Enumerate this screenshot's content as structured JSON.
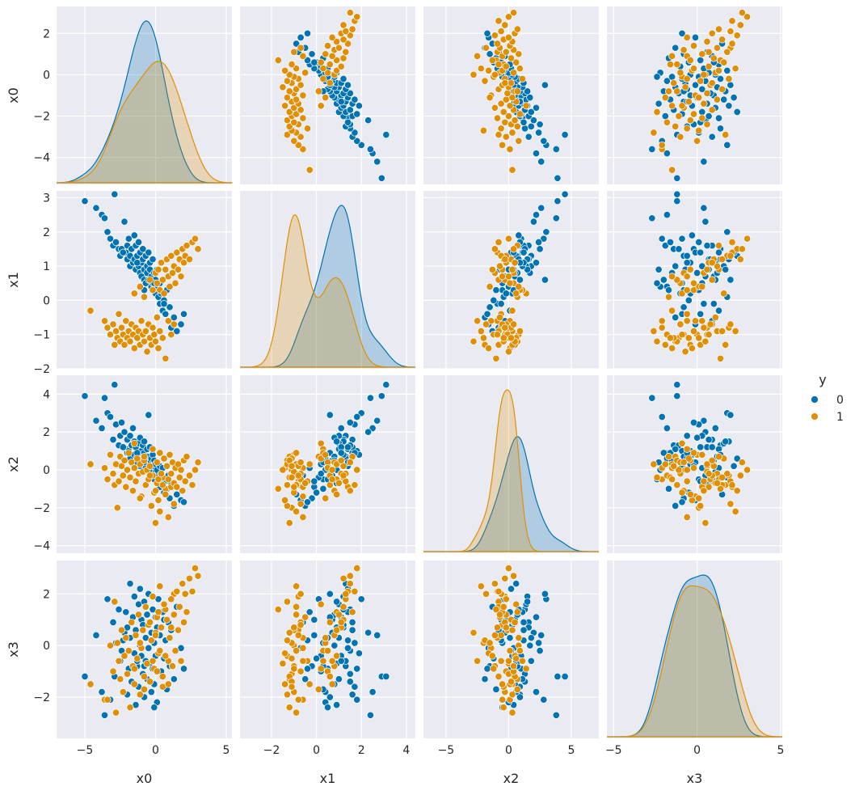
{
  "chart_data": {
    "type": "pairplot",
    "variables": [
      "x0",
      "x1",
      "x2",
      "x3"
    ],
    "hue": "y",
    "legend": {
      "title": "y",
      "placement": "right",
      "entries": [
        {
          "label": "0",
          "color": "#0173b2"
        },
        {
          "label": "1",
          "color": "#de8f05"
        }
      ]
    },
    "colors": {
      "panel_bg": "#eaeaf2",
      "grid": "#ffffff",
      "text": "#262626"
    },
    "grid": true,
    "axes": {
      "x0": {
        "range": [
          -7,
          5.4
        ],
        "ticks": [
          -5,
          0,
          5
        ]
      },
      "x1": {
        "range": [
          -3.4,
          4.4
        ],
        "ticks": [
          -2,
          0,
          2,
          4
        ]
      },
      "x2": {
        "range": [
          -6.8,
          7.2
        ],
        "ticks": [
          -5,
          0,
          5
        ]
      },
      "x3": {
        "range": [
          -5.4,
          5.1
        ],
        "ticks": [
          -5,
          0,
          5
        ]
      }
    },
    "y_ranges": {
      "x0": {
        "range": [
          -5.3,
          3.3
        ],
        "ticks": [
          -4,
          -2,
          0,
          2
        ]
      },
      "x1": {
        "range": [
          -2,
          3.2
        ],
        "ticks": [
          -2,
          -1,
          0,
          1,
          2,
          3
        ]
      },
      "x2": {
        "range": [
          -4.4,
          5.0
        ],
        "ticks": [
          -4,
          -2,
          0,
          2,
          4
        ]
      },
      "x3": {
        "range": [
          -3.6,
          3.3
        ],
        "ticks": [
          -2,
          0,
          2
        ]
      }
    },
    "series": [
      {
        "name": "0",
        "color": "#0173b2",
        "points": [
          [
            -5.0,
            2.9,
            3.9,
            -1.2
          ],
          [
            -4.2,
            2.7,
            2.6,
            0.4
          ],
          [
            -3.8,
            2.5,
            2.2,
            -1.8
          ],
          [
            -3.6,
            2.4,
            3.8,
            -2.7
          ],
          [
            -3.4,
            2.0,
            3.0,
            1.8
          ],
          [
            -3.2,
            1.8,
            2.8,
            -2.1
          ],
          [
            -3.0,
            1.6,
            1.6,
            0.9
          ],
          [
            -2.9,
            3.1,
            4.5,
            -1.2
          ],
          [
            -2.8,
            1.7,
            2.4,
            0.1
          ],
          [
            -2.6,
            1.5,
            1.3,
            1.4
          ],
          [
            -2.5,
            1.3,
            1.8,
            -0.6
          ],
          [
            -2.4,
            1.5,
            2.5,
            -0.2
          ],
          [
            -2.2,
            2.3,
            2.0,
            0.5
          ],
          [
            -2.1,
            1.4,
            1.1,
            1.3
          ],
          [
            -2.0,
            1.6,
            0.9,
            -1.9
          ],
          [
            -2.0,
            1.2,
            1.6,
            0.7
          ],
          [
            -1.9,
            1.8,
            1.0,
            -0.9
          ],
          [
            -1.8,
            1.3,
            0.6,
            2.4
          ],
          [
            -1.8,
            1.0,
            1.8,
            0.3
          ],
          [
            -1.7,
            1.5,
            1.3,
            -1.4
          ],
          [
            -1.6,
            1.1,
            2.2,
            1.1
          ],
          [
            -1.5,
            1.9,
            0.8,
            -0.3
          ],
          [
            -1.5,
            1.2,
            1.5,
            1.9
          ],
          [
            -1.4,
            0.9,
            0.4,
            -2.3
          ],
          [
            -1.4,
            1.6,
            1.2,
            0.6
          ],
          [
            -1.3,
            1.3,
            0.7,
            -0.8
          ],
          [
            -1.2,
            1.0,
            1.4,
            1.6
          ],
          [
            -1.2,
            1.7,
            0.9,
            -1.6
          ],
          [
            -1.1,
            0.8,
            1.7,
            0.0
          ],
          [
            -1.1,
            1.4,
            0.2,
            2.2
          ],
          [
            -1.0,
            1.1,
            1.0,
            -0.4
          ],
          [
            -1.0,
            0.7,
            0.5,
            1.0
          ],
          [
            -0.9,
            1.5,
            1.3,
            -1.1
          ],
          [
            -0.9,
            1.2,
            0.3,
            0.8
          ],
          [
            -0.8,
            0.6,
            0.9,
            -2.0
          ],
          [
            -0.8,
            0.9,
            1.5,
            1.7
          ],
          [
            -0.7,
            1.3,
            0.6,
            -0.6
          ],
          [
            -0.7,
            0.5,
            0.1,
            0.3
          ],
          [
            -0.6,
            1.0,
            1.1,
            -1.3
          ],
          [
            -0.6,
            0.8,
            0.7,
            1.2
          ],
          [
            -0.5,
            1.4,
            0.4,
            -0.1
          ],
          [
            -0.5,
            0.6,
            2.9,
            2.0
          ],
          [
            -0.4,
            0.9,
            0.0,
            -0.7
          ],
          [
            -0.4,
            1.1,
            1.2,
            0.9
          ],
          [
            -0.3,
            0.4,
            0.6,
            -1.8
          ],
          [
            -0.3,
            0.7,
            -0.3,
            0.5
          ],
          [
            -0.2,
            1.2,
            0.8,
            1.4
          ],
          [
            -0.2,
            0.5,
            0.2,
            -0.9
          ],
          [
            -0.1,
            0.3,
            -0.5,
            0.1
          ],
          [
            -0.1,
            0.8,
            0.5,
            -1.5
          ],
          [
            0.0,
            0.6,
            -0.1,
            1.1
          ],
          [
            0.0,
            0.2,
            0.3,
            -0.4
          ],
          [
            0.1,
            0.9,
            -0.7,
            0.7
          ],
          [
            0.1,
            0.4,
            0.0,
            -2.2
          ],
          [
            0.2,
            0.1,
            -0.4,
            1.8
          ],
          [
            0.3,
            0.5,
            0.2,
            -0.2
          ],
          [
            0.3,
            -0.1,
            -0.9,
            0.4
          ],
          [
            0.4,
            0.2,
            -0.2,
            -1.0
          ],
          [
            0.5,
            -0.3,
            0.1,
            1.3
          ],
          [
            0.6,
            0.0,
            -1.2,
            -0.5
          ],
          [
            0.7,
            -0.4,
            -0.6,
            0.2
          ],
          [
            0.8,
            0.3,
            -1.0,
            -1.7
          ],
          [
            0.9,
            -0.6,
            -0.3,
            0.9
          ],
          [
            1.0,
            -0.2,
            -1.5,
            -0.8
          ],
          [
            1.1,
            -0.8,
            -0.8,
            0.6
          ],
          [
            1.3,
            -0.5,
            -1.9,
            -1.3
          ],
          [
            1.5,
            -0.9,
            -1.3,
            1.5
          ],
          [
            1.8,
            -0.7,
            -1.6,
            -0.1
          ],
          [
            2.0,
            -0.4,
            -1.7,
            -0.9
          ],
          [
            -0.1,
            0.5,
            -0.5,
            -2.4
          ],
          [
            -1.3,
            1.1,
            0.9,
            -0.6
          ],
          [
            -2.3,
            1.4,
            1.2,
            0.2
          ],
          [
            -0.8,
            0.3,
            0.4,
            -0.8
          ],
          [
            0.6,
            -0.1,
            -0.6,
            1.0
          ]
        ]
      },
      {
        "name": "1",
        "color": "#de8f05",
        "points": [
          [
            -4.6,
            -0.3,
            0.3,
            -1.5
          ],
          [
            -3.6,
            -0.6,
            0.1,
            -2.1
          ],
          [
            -3.4,
            -0.8,
            -0.5,
            -2.1
          ],
          [
            -3.2,
            -1.0,
            0.8,
            0.0
          ],
          [
            -3.0,
            -0.7,
            -0.2,
            -1.0
          ],
          [
            -2.9,
            -1.3,
            -0.8,
            1.7
          ],
          [
            -2.8,
            -0.9,
            0.3,
            -2.6
          ],
          [
            -2.7,
            -1.1,
            -2.0,
            0.1
          ],
          [
            -2.6,
            -0.4,
            -0.6,
            -0.6
          ],
          [
            -2.5,
            -1.2,
            0.7,
            -1.3
          ],
          [
            -2.4,
            -0.8,
            0.2,
            0.6
          ],
          [
            -2.3,
            -1.0,
            -0.3,
            -1.8
          ],
          [
            -2.2,
            -1.3,
            0.5,
            -0.4
          ],
          [
            -2.1,
            -0.6,
            -0.9,
            0.3
          ],
          [
            -2.0,
            -1.1,
            0.0,
            -1.1
          ],
          [
            -1.9,
            -0.9,
            0.9,
            -0.2
          ],
          [
            -1.8,
            -1.2,
            -0.4,
            -2.4
          ],
          [
            -1.7,
            -0.7,
            0.4,
            0.9
          ],
          [
            -1.6,
            -1.0,
            -1.1,
            -0.8
          ],
          [
            -1.5,
            -1.4,
            0.1,
            -1.5
          ],
          [
            -1.4,
            -0.8,
            -0.6,
            0.4
          ],
          [
            -1.3,
            -1.1,
            0.6,
            -0.5
          ],
          [
            -1.2,
            -0.9,
            -0.2,
            1.2
          ],
          [
            -1.1,
            -1.3,
            0.3,
            -1.9
          ],
          [
            -1.0,
            -0.6,
            -1.4,
            -0.1
          ],
          [
            -0.9,
            -1.0,
            -0.1,
            0.6
          ],
          [
            -0.8,
            -1.2,
            0.5,
            -1.2
          ],
          [
            -0.7,
            -0.9,
            -0.8,
            1.5
          ],
          [
            -0.6,
            -1.5,
            0.0,
            -0.7
          ],
          [
            -0.5,
            -0.7,
            -0.5,
            0.8
          ],
          [
            -0.4,
            -1.1,
            0.2,
            -1.4
          ],
          [
            -0.3,
            -1.3,
            -1.9,
            0.2
          ],
          [
            -0.2,
            -0.8,
            -0.3,
            1.9
          ],
          [
            -0.1,
            -1.0,
            -1.2,
            -0.9
          ],
          [
            0.0,
            -1.2,
            -2.8,
            0.5
          ],
          [
            0.1,
            -0.5,
            -0.7,
            1.1
          ],
          [
            0.2,
            -1.4,
            -1.6,
            -0.3
          ],
          [
            0.3,
            -0.9,
            -2.2,
            2.3
          ],
          [
            0.5,
            -1.1,
            -0.4,
            -1.6
          ],
          [
            0.7,
            -1.7,
            -1.0,
            1.4
          ],
          [
            0.9,
            -0.6,
            -2.5,
            -0.6
          ],
          [
            1.1,
            -1.0,
            -0.9,
            0.7
          ],
          [
            1.3,
            -0.7,
            -1.8,
            2.0
          ],
          [
            -1.5,
            0.2,
            1.4,
            -0.9
          ],
          [
            -1.1,
            0.4,
            -1.5,
            0.1
          ],
          [
            -0.8,
            0.1,
            0.7,
            -1.7
          ],
          [
            -0.4,
            0.6,
            -0.3,
            0.9
          ],
          [
            -0.2,
            0.3,
            1.1,
            -0.6
          ],
          [
            0.0,
            0.8,
            -1.1,
            0.4
          ],
          [
            0.1,
            0.5,
            0.4,
            -1.0
          ],
          [
            0.2,
            0.9,
            -0.5,
            1.3
          ],
          [
            0.3,
            0.3,
            0.9,
            -0.2
          ],
          [
            0.4,
            1.1,
            -0.2,
            0.7
          ],
          [
            0.5,
            0.6,
            -0.8,
            -1.2
          ],
          [
            0.6,
            0.2,
            0.6,
            1.6
          ],
          [
            0.7,
            0.9,
            -1.3,
            -0.4
          ],
          [
            0.8,
            1.2,
            0.2,
            1.0
          ],
          [
            0.9,
            0.7,
            -0.5,
            -1.5
          ],
          [
            1.0,
            0.4,
            0.8,
            0.3
          ],
          [
            1.1,
            1.3,
            -0.2,
            1.8
          ],
          [
            1.2,
            0.8,
            0.4,
            -0.8
          ],
          [
            1.3,
            1.0,
            -0.7,
            1.2
          ],
          [
            1.4,
            0.5,
            0.1,
            -0.2
          ],
          [
            1.5,
            1.4,
            -0.9,
            2.1
          ],
          [
            1.6,
            0.9,
            0.3,
            0.6
          ],
          [
            1.7,
            1.2,
            -0.4,
            1.5
          ],
          [
            1.8,
            0.7,
            0.0,
            -0.6
          ],
          [
            1.9,
            1.5,
            -1.1,
            2.4
          ],
          [
            2.0,
            1.1,
            0.5,
            0.9
          ],
          [
            2.1,
            1.3,
            -0.6,
            2.0
          ],
          [
            2.2,
            1.6,
            0.7,
            1.3
          ],
          [
            2.4,
            1.2,
            -0.3,
            2.6
          ],
          [
            2.6,
            1.7,
            -0.8,
            2.1
          ],
          [
            2.8,
            1.8,
            0.0,
            3.0
          ],
          [
            3.0,
            1.5,
            0.4,
            2.7
          ]
        ]
      }
    ]
  }
}
